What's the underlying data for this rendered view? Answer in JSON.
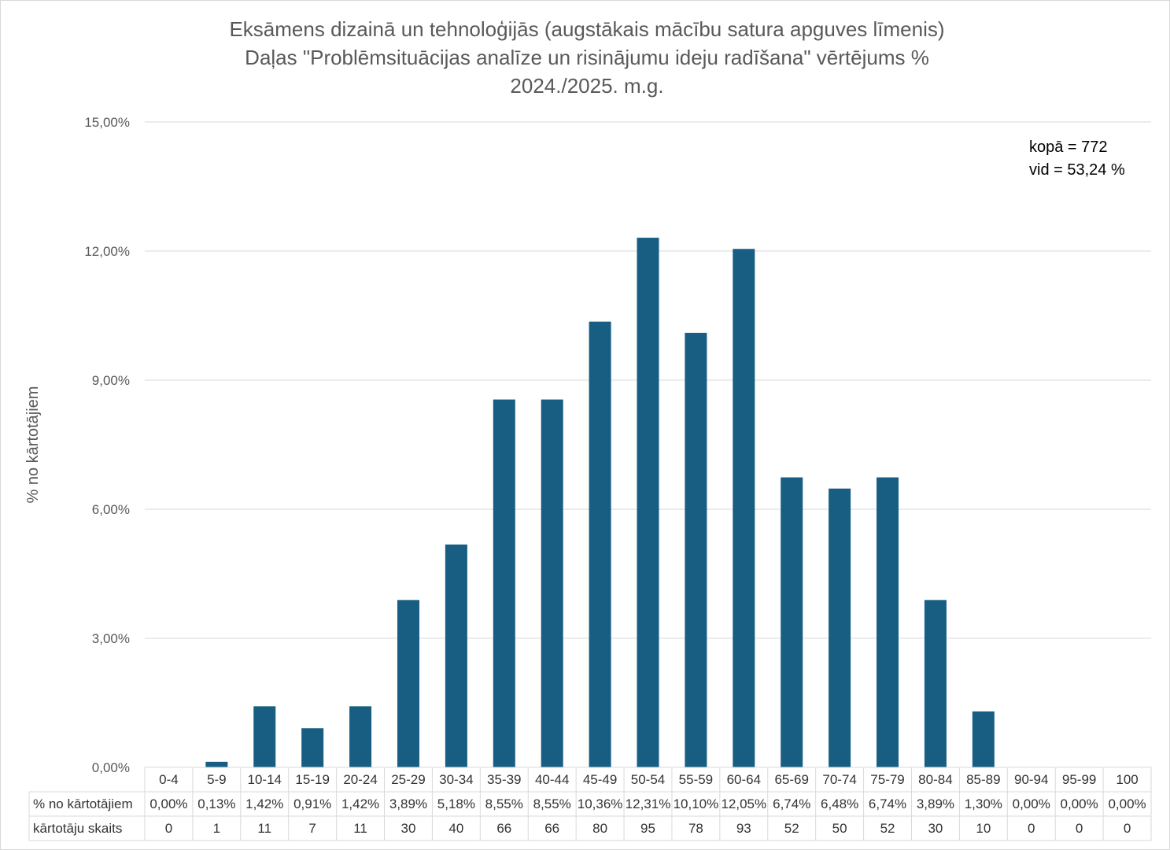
{
  "chart_data": {
    "type": "bar",
    "title_lines": [
      "Eksāmens dizainā un tehnoloģijās (augstākais mācību satura apguves līmenis)",
      "Daļas \"Problēmsituācijas analīze un risinājumu ideju radīšana\" vērtējums %",
      "2024./2025. m.g."
    ],
    "ylabel": "% no kārtotājiem",
    "ylim": [
      0,
      15
    ],
    "yticks": [
      "0,00%",
      "3,00%",
      "6,00%",
      "9,00%",
      "12,00%",
      "15,00%"
    ],
    "ytick_values": [
      0,
      3,
      6,
      9,
      12,
      15
    ],
    "grid": true,
    "bar_color": "#175E82",
    "categories": [
      "0-4",
      "5-9",
      "10-14",
      "15-19",
      "20-24",
      "25-29",
      "30-34",
      "35-39",
      "40-44",
      "45-49",
      "50-54",
      "55-59",
      "60-64",
      "65-69",
      "70-74",
      "75-79",
      "80-84",
      "85-89",
      "90-94",
      "95-99",
      "100"
    ],
    "values": [
      0.0,
      0.13,
      1.42,
      0.91,
      1.42,
      3.89,
      5.18,
      8.55,
      8.55,
      10.36,
      12.31,
      10.1,
      12.05,
      6.74,
      6.48,
      6.74,
      3.89,
      1.3,
      0.0,
      0.0,
      0.0
    ],
    "table": {
      "row1_label": "% no kārtotājiem",
      "row1_values": [
        "0,00%",
        "0,13%",
        "1,42%",
        "0,91%",
        "1,42%",
        "3,89%",
        "5,18%",
        "8,55%",
        "8,55%",
        "10,36%",
        "12,31%",
        "10,10%",
        "12,05%",
        "6,74%",
        "6,48%",
        "6,74%",
        "3,89%",
        "1,30%",
        "0,00%",
        "0,00%",
        "0,00%"
      ],
      "row2_label": "kārtotāju skaits",
      "row2_values": [
        "0",
        "1",
        "11",
        "7",
        "11",
        "30",
        "40",
        "66",
        "66",
        "80",
        "95",
        "78",
        "93",
        "52",
        "50",
        "52",
        "30",
        "10",
        "0",
        "0",
        "0"
      ]
    },
    "annotations": [
      "kopā = 772",
      "vid = 53,24 %"
    ]
  }
}
